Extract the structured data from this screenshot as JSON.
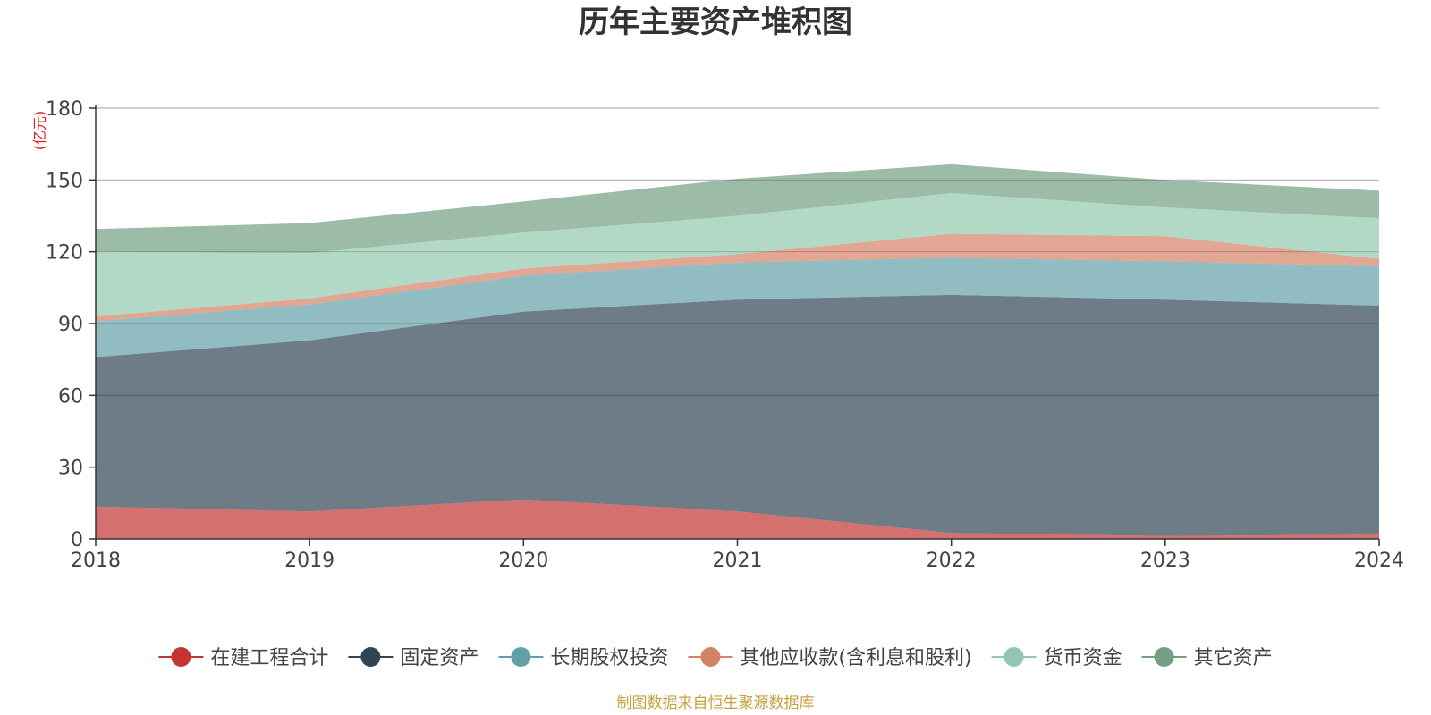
{
  "chart_data": {
    "type": "area",
    "stacked": true,
    "title": "历年主要资产堆积图",
    "ylabel": "(亿元)",
    "xlabel": "",
    "x": [
      "2018",
      "2019",
      "2020",
      "2021",
      "2022",
      "2023",
      "2024"
    ],
    "ylim": [
      0,
      180
    ],
    "yticks": [
      0,
      30,
      60,
      90,
      120,
      150,
      180
    ],
    "grid": true,
    "legend_position": "bottom",
    "series": [
      {
        "name": "在建工程合计",
        "color": "#c23531",
        "values": [
          13.5,
          11.5,
          16.5,
          11.5,
          2.5,
          1.2,
          1.8
        ]
      },
      {
        "name": "固定资产",
        "color": "#2f4554",
        "values": [
          62.5,
          71.5,
          78.5,
          88.5,
          99.5,
          98.8,
          95.7
        ]
      },
      {
        "name": "长期股权投资",
        "color": "#61a0a8",
        "values": [
          15,
          15,
          15,
          15.5,
          15.5,
          16,
          16.5
        ]
      },
      {
        "name": "其他应收款(含利息和股利)",
        "color": "#d48265",
        "values": [
          2,
          2.5,
          3,
          3.5,
          10,
          10.5,
          3
        ]
      },
      {
        "name": "货币资金",
        "color": "#91c7ae",
        "values": [
          27,
          19,
          15,
          16,
          17,
          12,
          17
        ]
      },
      {
        "name": "其它资产",
        "color": "#749f83",
        "values": [
          9.5,
          12.5,
          13,
          15.5,
          12,
          11.5,
          11.5
        ]
      }
    ],
    "source": "制图数据来自恒生聚源数据库",
    "source_color": "#c8a040",
    "unit_color": "#e02020"
  }
}
